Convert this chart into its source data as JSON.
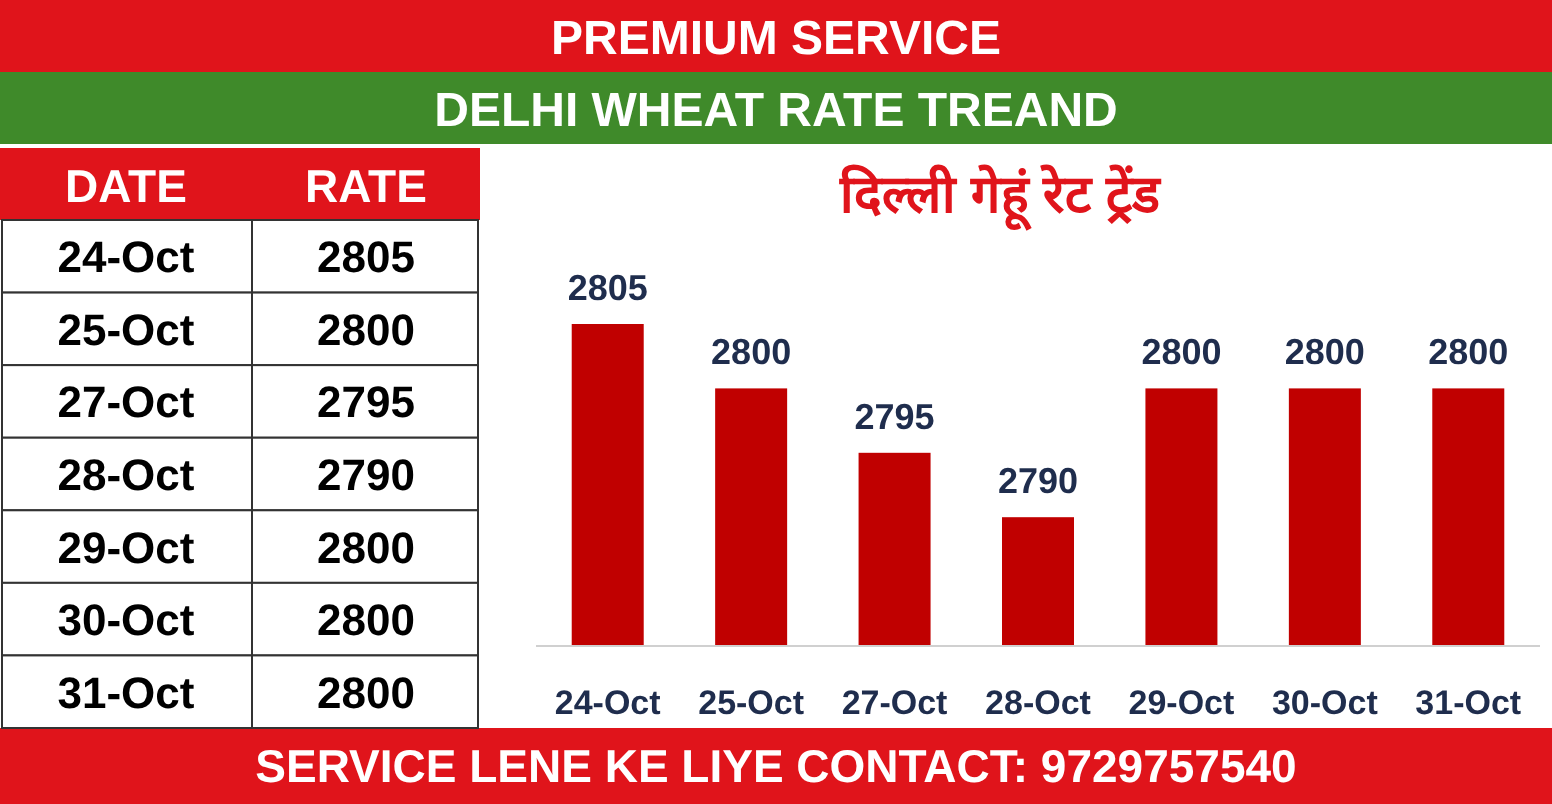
{
  "chart_data": [
    {
      "type": "other",
      "xlabel": "DATE",
      "ylabel": "RATE",
      "categories": [
        "24-Oct",
        "25-Oct",
        "27-Oct",
        "28-Oct",
        "29-Oct",
        "30-Oct",
        "31-Oct"
      ],
      "values": [
        2805,
        2800,
        2795,
        2790,
        2800,
        2800,
        2800
      ],
      "data_labels": true
    },
    {
      "type": "bar",
      "title": "DELHI WHEAT RATE TREAND",
      "subtitle": "दिल्ली गेहूं रेट ट्रेंड",
      "annotations": [
        "PREMIUM SERVICE",
        "SERVICE LENE KE LIYE CONTACT: 9729757540"
      ],
      "categories": [
        "24-Oct",
        "25-Oct",
        "27-Oct",
        "28-Oct",
        "29-Oct",
        "30-Oct",
        "31-Oct"
      ],
      "values": [
        2805,
        2800,
        2795,
        2790,
        2800,
        2800,
        2800
      ],
      "color": "#c00000",
      "ylim": [
        2780,
        2805
      ],
      "data_labels": true
    }
  ]
}
